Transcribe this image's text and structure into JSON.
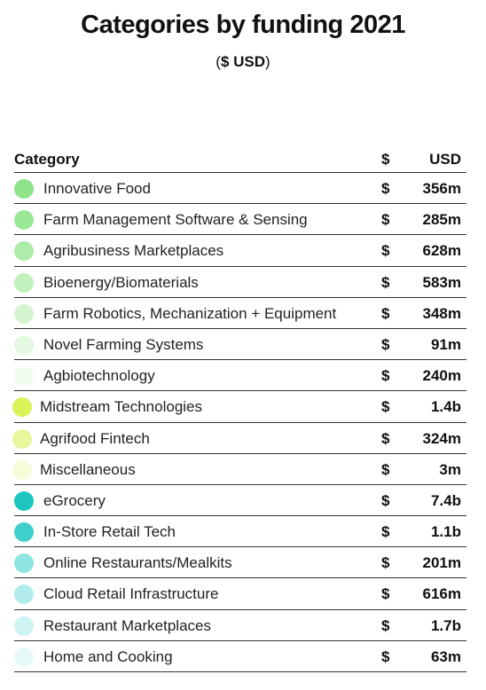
{
  "chart_data": {
    "type": "table",
    "title": "Categories by funding 2021",
    "subtitle_open": "(",
    "subtitle_bold": "$ USD",
    "subtitle_close": ")",
    "columns": [
      "Category",
      "$",
      "USD"
    ],
    "rows": [
      {
        "category": "Innovative Food",
        "currency": "$",
        "value": "356m",
        "color": "#8fe38a"
      },
      {
        "category": "Farm Management Software & Sensing",
        "currency": "$",
        "value": "285m",
        "color": "#9be896"
      },
      {
        "category": "Agribusiness Marketplaces",
        "currency": "$",
        "value": "628m",
        "color": "#aeeca9"
      },
      {
        "category": "Bioenergy/Biomaterials",
        "currency": "$",
        "value": "583m",
        "color": "#c2f1bd"
      },
      {
        "category": "Farm Robotics, Mechanization + Equipment",
        "currency": "$",
        "value": "348m",
        "color": "#d4f5d0"
      },
      {
        "category": "Novel Farming Systems",
        "currency": "$",
        "value": "91m",
        "color": "#e4f8e1"
      },
      {
        "category": "Agbiotechnology",
        "currency": "$",
        "value": "240m",
        "color": "#f1fbef"
      },
      {
        "category": "Midstream Technologies",
        "currency": "$",
        "value": "1.4b",
        "color": "#dcf25a"
      },
      {
        "category": "Agrifood Fintech",
        "currency": "$",
        "value": "324m",
        "color": "#e8f79c"
      },
      {
        "category": "Miscellaneous",
        "currency": "$",
        "value": "3m",
        "color": "#f5fcd8"
      },
      {
        "category": "eGrocery",
        "currency": "$",
        "value": "7.4b",
        "color": "#1dc7c0"
      },
      {
        "category": "In-Store Retail Tech",
        "currency": "$",
        "value": "1.1b",
        "color": "#3ecfca"
      },
      {
        "category": "Online Restaurants/Mealkits",
        "currency": "$",
        "value": "201m",
        "color": "#8fe3e0"
      },
      {
        "category": "Cloud Retail Infrastructure",
        "currency": "$",
        "value": "616m",
        "color": "#b2ecea"
      },
      {
        "category": "Restaurant Marketplaces",
        "currency": "$",
        "value": "1.7b",
        "color": "#cdf3f2"
      },
      {
        "category": "Home and Cooking",
        "currency": "$",
        "value": "63m",
        "color": "#e6f9f8"
      }
    ]
  }
}
